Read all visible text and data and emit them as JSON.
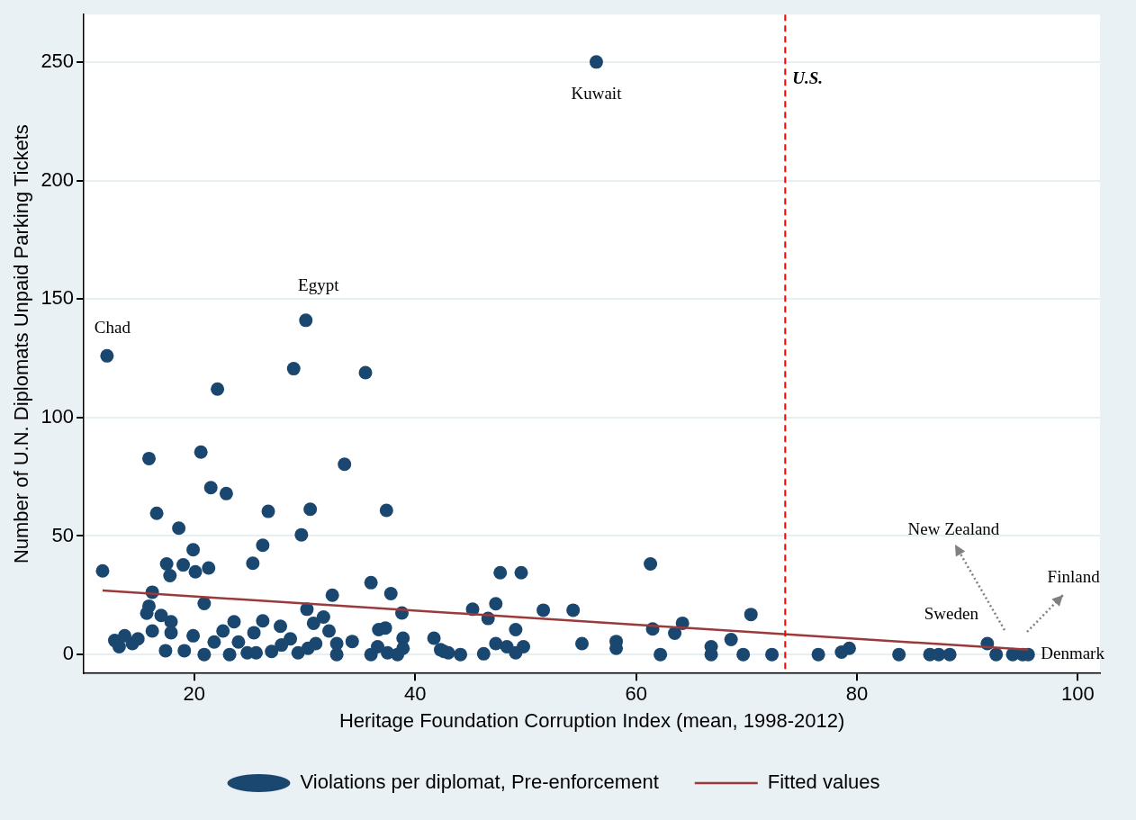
{
  "chart_data": {
    "type": "scatter",
    "xlabel": "Heritage Foundation Corruption Index (mean, 1998-2012)",
    "ylabel": "Number of U.N. Diplomats Unpaid Parking Tickets",
    "xlim": [
      10,
      102
    ],
    "ylim": [
      -8,
      270
    ],
    "xticks": [
      20,
      40,
      60,
      80,
      100
    ],
    "yticks": [
      0,
      50,
      100,
      150,
      200,
      250
    ],
    "grid": "y",
    "legend": "bottom",
    "series": [
      {
        "name": "Violations per diplomat, Pre-enforcement",
        "marker": "circle",
        "color": "#1a476f",
        "x": [
          12.1,
          30.1,
          29.0,
          35.5,
          22.1,
          15.9,
          20.6,
          33.6,
          21.5,
          22.9,
          16.6,
          26.7,
          30.5,
          18.6,
          29.7,
          26.2,
          19.9,
          11.7,
          25.3,
          17.5,
          19.0,
          21.3,
          20.1,
          17.8,
          36.0,
          32.5,
          16.2,
          20.9,
          15.9,
          30.2,
          31.7,
          17.0,
          17.9,
          30.8,
          32.2,
          15.7,
          23.6,
          26.2,
          27.8,
          19.9,
          17.9,
          16.2,
          12.8,
          13.7,
          13.2,
          14.4,
          14.9,
          17.4,
          19.1,
          20.9,
          21.8,
          22.6,
          23.2,
          24.0,
          24.8,
          25.4,
          25.6,
          27.0,
          27.9,
          28.7,
          29.4,
          30.3,
          31.0,
          32.9,
          32.9,
          34.3,
          36.0,
          37.4,
          37.8,
          47.7,
          49.6,
          38.8,
          45.2,
          47.3,
          46.6,
          37.3,
          36.7,
          38.9,
          41.7,
          42.3,
          43.0,
          44.1,
          46.2,
          47.3,
          48.3,
          49.1,
          49.1,
          49.8,
          36.6,
          37.5,
          38.4,
          38.9,
          61.3,
          51.6,
          54.3,
          70.4,
          61.5,
          64.2,
          63.5,
          68.6,
          55.1,
          58.2,
          58.2,
          66.8,
          66.8,
          62.2,
          69.7,
          72.3,
          42.6,
          76.5,
          78.6,
          79.3,
          83.8,
          86.6,
          87.4,
          88.4,
          91.8,
          92.6,
          94.1,
          95.0,
          95.5,
          56.4
        ],
        "values": [
          126,
          141,
          120.6,
          118.9,
          112,
          82.7,
          85.4,
          80.3,
          70.4,
          67.9,
          59.6,
          60.4,
          61.3,
          53.3,
          50.5,
          46.1,
          44.2,
          35.3,
          38.5,
          38.2,
          37.8,
          36.5,
          34.9,
          33.3,
          30.3,
          25.0,
          26.3,
          21.5,
          20.4,
          19.1,
          15.8,
          16.5,
          13.8,
          13.2,
          9.9,
          17.4,
          13.8,
          14.2,
          11.9,
          7.9,
          9.2,
          9.9,
          5.9,
          7.9,
          3.3,
          4.6,
          6.6,
          1.6,
          1.6,
          0,
          5.3,
          9.9,
          0,
          5.3,
          0.7,
          9.2,
          0.7,
          1.3,
          4.0,
          6.6,
          0.7,
          2.6,
          4.6,
          0,
          4.6,
          5.5,
          0,
          60.8,
          25.7,
          34.5,
          34.5,
          17.5,
          19.1,
          21.4,
          15.2,
          11.2,
          10.5,
          6.9,
          6.9,
          2.0,
          0.7,
          0,
          0.3,
          4.6,
          3.3,
          0.7,
          10.5,
          3.3,
          3.3,
          0.7,
          0,
          2.6,
          38.2,
          18.7,
          18.7,
          16.9,
          10.8,
          13.2,
          9.0,
          6.3,
          4.6,
          5.5,
          2.6,
          3.3,
          0,
          0,
          0,
          0,
          1.3,
          0,
          1.0,
          2.6,
          0,
          0,
          0,
          0,
          4.6,
          0,
          0,
          0,
          0,
          250
        ]
      },
      {
        "name": "Fitted values",
        "type": "line",
        "color": "#9b3a3a",
        "x": [
          11.7,
          95.5
        ],
        "values": [
          27,
          2
        ]
      }
    ],
    "ref_lines": [
      {
        "axis": "x",
        "value": 73.5,
        "label": "U.S.",
        "color": "#ff0000",
        "line_style": "dashed"
      }
    ],
    "annotations": [
      {
        "text": "Chad",
        "x": 12.1,
        "y": 126
      },
      {
        "text": "Egypt",
        "x": 30.1,
        "y": 141
      },
      {
        "text": "Kuwait",
        "x": 56.4,
        "y": 250
      },
      {
        "text": "Sweden",
        "x": 91.8,
        "y": 4.6
      },
      {
        "text": "Denmark",
        "x": 95.5,
        "y": 0
      },
      "New Zealand",
      "Finland"
    ]
  }
}
